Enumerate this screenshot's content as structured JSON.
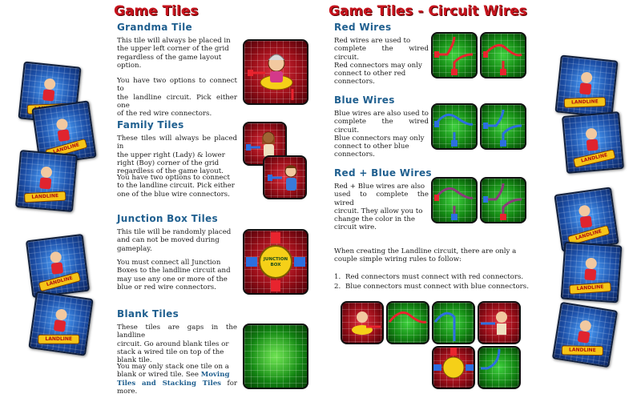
{
  "left_page": {
    "heading": "Game Tiles",
    "sections": [
      {
        "title": "Grandma Tile",
        "paragraphs": [
          [
            "This tile will always be placed in",
            "the upper left corner of the grid",
            "regardless of the game layout",
            "option."
          ],
          [
            "You have two options to connect to",
            "the landline circuit. Pick either one",
            "of the red wire connectors."
          ]
        ]
      },
      {
        "title": "Family Tiles",
        "paragraphs": [
          [
            "These tiles will always be placed in",
            "the upper right (Lady) & lower",
            "right (Boy) corner of the grid",
            "regardless of the game layout."
          ],
          [
            "You have two options to connect",
            "to the landline circuit. Pick either",
            "one of the blue wire connectors."
          ]
        ]
      },
      {
        "title": "Junction Box Tiles",
        "paragraphs": [
          [
            "This tile will be randomly placed",
            "and can not be moved during",
            "gameplay."
          ],
          [
            "You must connect all Junction",
            "Boxes to the landline circuit and",
            "may use any one or more of the",
            "blue or red wire connectors."
          ]
        ]
      },
      {
        "title": "Blank Tiles",
        "paragraphs": [
          [
            "These tiles are gaps in the landline",
            "circuit. Go around blank tiles or",
            "stack a wired tile on top of the",
            "blank tile."
          ]
        ],
        "last_paragraph": {
          "lines": [
            "You may only stack one tile on a",
            "blank or wired tile. See"
          ],
          "link_1": "Moving",
          "link_2": "Tiles and Stacking Tiles",
          "tail": " for more."
        }
      }
    ],
    "junction_label": "JUNCTION BOX"
  },
  "right_page": {
    "heading": "Game Tiles - Circuit Wires",
    "sections": [
      {
        "title": "Red Wires",
        "paragraphs": [
          [
            "Red wires are used to",
            "complete the wired circuit.",
            "Red connectors may only",
            "connect to other red",
            "connectors."
          ]
        ]
      },
      {
        "title": "Blue Wires",
        "paragraphs": [
          [
            "Blue wires are also used to",
            "complete the wired circuit.",
            "Blue connectors may only",
            "connect to other blue",
            "connectors."
          ]
        ]
      },
      {
        "title": "Red + Blue Wires",
        "paragraphs": [
          [
            "Red + Blue wires are also",
            "used to complete the wired",
            "circuit. They allow you to",
            "change the color in the",
            "circuit wire."
          ]
        ]
      }
    ],
    "rules_intro": [
      "When creating the Landline circuit, there are only a",
      "couple simple wiring rules to follow:"
    ],
    "rules": [
      {
        "num": "1.",
        "text": "Red connectors must connect with red connectors."
      },
      {
        "num": "2.",
        "text": "Blue connectors must connect with blue connectors."
      }
    ]
  },
  "side_card_logo": "LANDLINE",
  "colors": {
    "heading_red": "#c8141e",
    "section_blue": "#1f5f8f",
    "tile_red": "#b3121e",
    "tile_green": "#1fa01f",
    "wire_red": "#e8242e",
    "wire_blue": "#2c6fe0"
  }
}
